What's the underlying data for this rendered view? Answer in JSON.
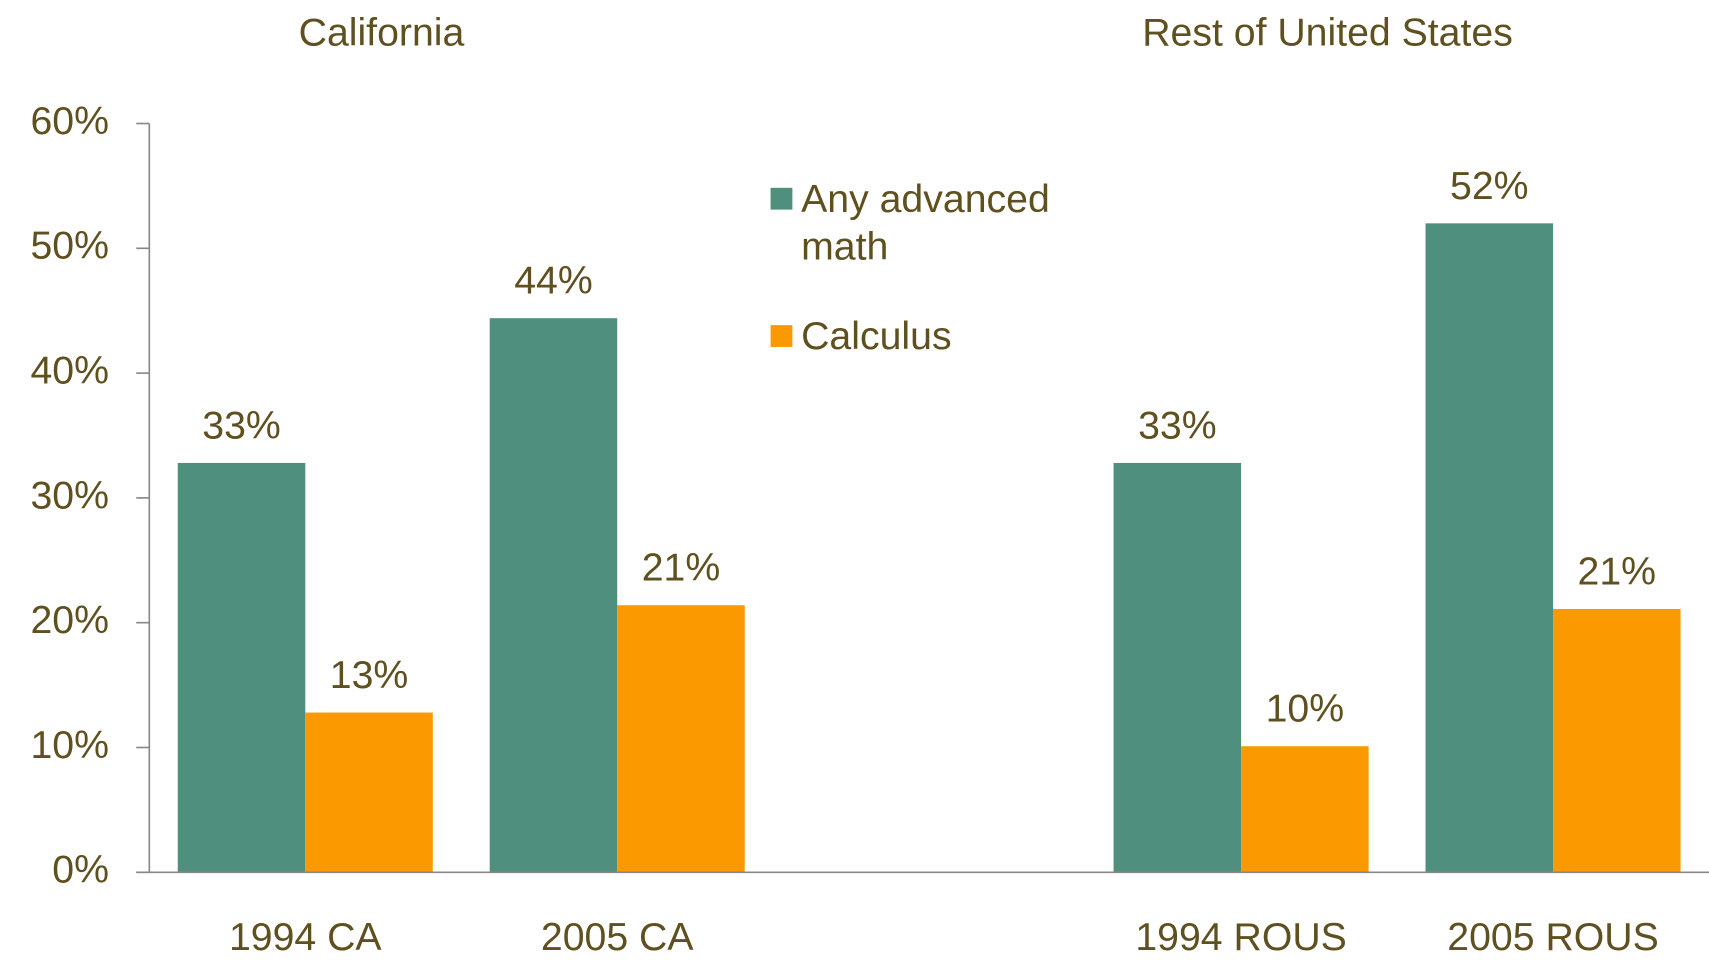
{
  "chart_data": {
    "type": "bar",
    "annotations": [
      "California",
      "Rest of United States"
    ],
    "categories": [
      "1994 CA",
      "2005 CA",
      null,
      "1994 ROUS",
      "2005 ROUS"
    ],
    "series": [
      {
        "name": "Any advanced math",
        "color": "#4f8f7e",
        "values": [
          32.8,
          44.4,
          null,
          32.8,
          52
        ],
        "value_labels": [
          "33%",
          "44%",
          null,
          "33%",
          "52%"
        ]
      },
      {
        "name": "Calculus",
        "color": "#fb9900",
        "values": [
          12.8,
          21.4,
          null,
          10.1,
          21.1
        ],
        "value_labels": [
          "13%",
          "21%",
          null,
          "10%",
          "21%"
        ]
      }
    ],
    "ylim": [
      0,
      60
    ],
    "yticks": [
      {
        "value": 0,
        "label": "0%"
      },
      {
        "value": 10,
        "label": "10%"
      },
      {
        "value": 20,
        "label": "20%"
      },
      {
        "value": 30,
        "label": "30%"
      },
      {
        "value": 40,
        "label": "40%"
      },
      {
        "value": 50,
        "label": "50%"
      },
      {
        "value": 60,
        "label": "60%"
      }
    ]
  }
}
